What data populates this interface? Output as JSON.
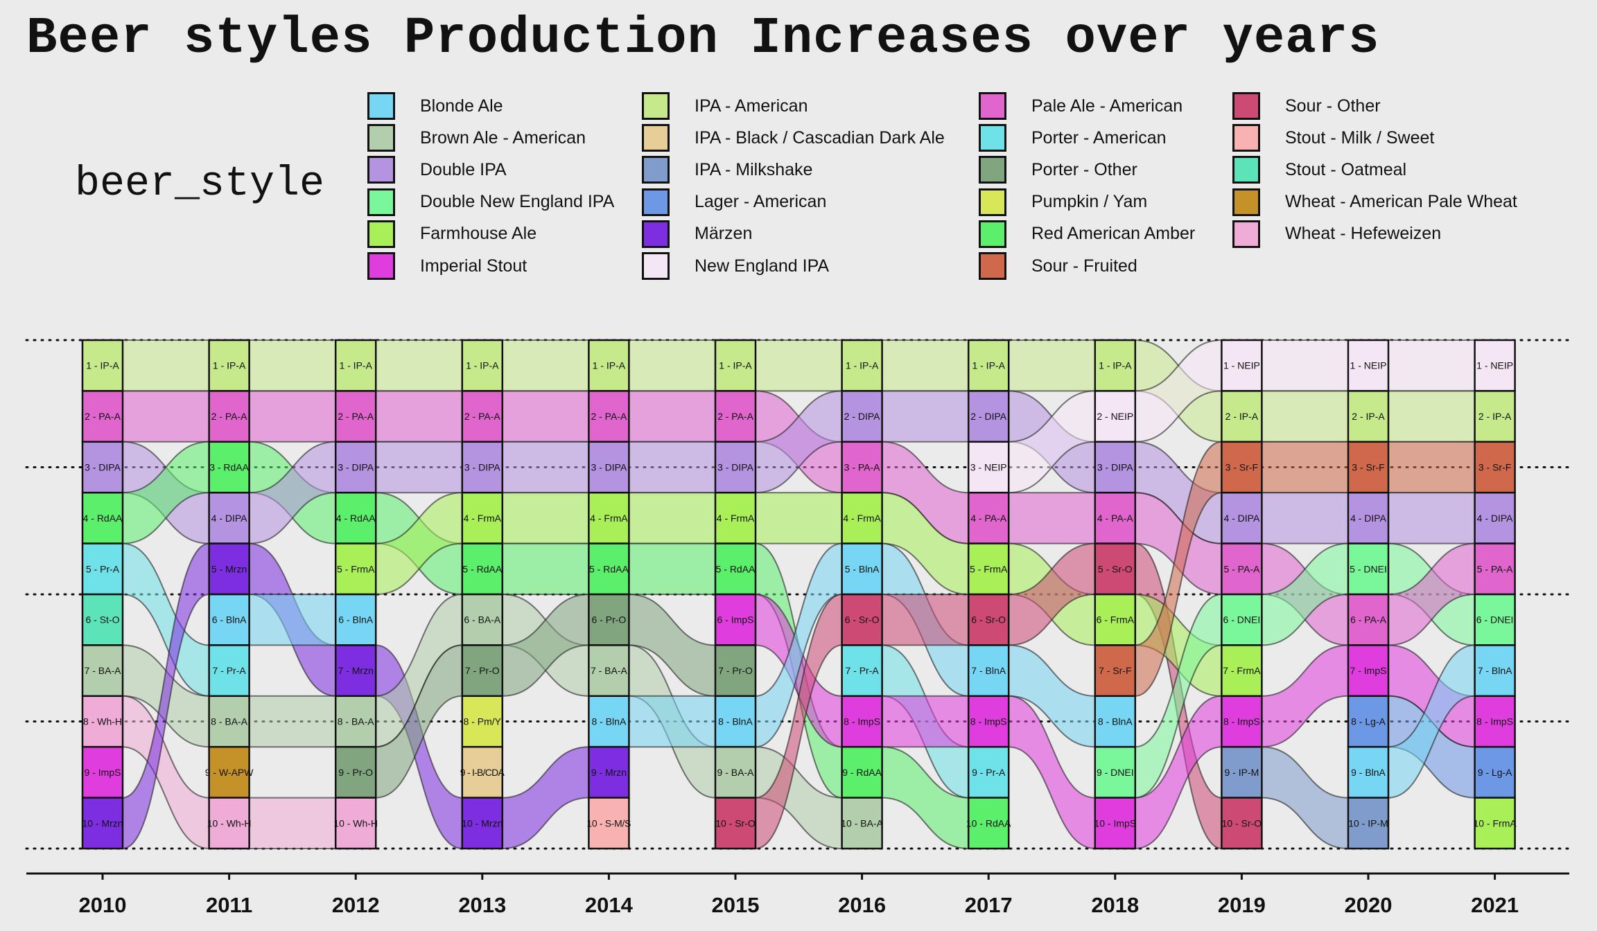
{
  "chart_data": {
    "type": "alluvial",
    "title": "Beer styles Production Increases over years",
    "legend_title": "beer_style",
    "legend_placement": "top",
    "years": [
      "2010",
      "2011",
      "2012",
      "2013",
      "2014",
      "2015",
      "2016",
      "2017",
      "2018",
      "2019",
      "2020",
      "2021"
    ],
    "styles": [
      {
        "name": "Blonde Ale",
        "abbr": "BlnA",
        "color": "#77d6f4"
      },
      {
        "name": "Brown Ale - American",
        "abbr": "BA-A",
        "color": "#b2ceac"
      },
      {
        "name": "Double IPA",
        "abbr": "DIPA",
        "color": "#b493e1"
      },
      {
        "name": "Double New England IPA",
        "abbr": "DNEI",
        "color": "#7bf79b"
      },
      {
        "name": "Farmhouse Ale",
        "abbr": "FrmA",
        "color": "#a8ef58"
      },
      {
        "name": "Imperial Stout",
        "abbr": "ImpS",
        "color": "#e03ddf"
      },
      {
        "name": "IPA - American",
        "abbr": "IP-A",
        "color": "#c6e98c"
      },
      {
        "name": "IPA - Black / Cascadian Dark Ale",
        "abbr": "I-B/CDA",
        "color": "#e7cd98"
      },
      {
        "name": "IPA - Milkshake",
        "abbr": "IP-M",
        "color": "#7f9ccc"
      },
      {
        "name": "Lager - American",
        "abbr": "Lg-A",
        "color": "#6c98e6"
      },
      {
        "name": "Märzen",
        "abbr": "Mrzn",
        "color": "#7c2ee0"
      },
      {
        "name": "New England IPA",
        "abbr": "NEIP",
        "color": "#f5e6f5"
      },
      {
        "name": "Pale Ale - American",
        "abbr": "PA-A",
        "color": "#e065cd"
      },
      {
        "name": "Porter - American",
        "abbr": "Pr-A",
        "color": "#6ee2e8"
      },
      {
        "name": "Porter - Other",
        "abbr": "Pr-O",
        "color": "#81a57f"
      },
      {
        "name": "Pumpkin / Yam",
        "abbr": "Pm/Y",
        "color": "#d8e757"
      },
      {
        "name": "Red American Amber",
        "abbr": "RdAA",
        "color": "#5bef6c"
      },
      {
        "name": "Sour - Fruited",
        "abbr": "Sr-F",
        "color": "#d0694b"
      },
      {
        "name": "Sour - Other",
        "abbr": "Sr-O",
        "color": "#cc4a74"
      },
      {
        "name": "Stout - Milk / Sweet",
        "abbr": "S-M/S",
        "color": "#f9b2b2"
      },
      {
        "name": "Stout - Oatmeal",
        "abbr": "St-O",
        "color": "#5de3b8"
      },
      {
        "name": "Wheat  - American Pale Wheat",
        "abbr": "W-APW",
        "color": "#c5922a"
      },
      {
        "name": "Wheat  - Hefeweizen",
        "abbr": "Wh-H",
        "color": "#eeacd6"
      }
    ],
    "rankings": {
      "2010": [
        "IP-A",
        "PA-A",
        "DIPA",
        "RdAA",
        "Pr-A",
        "St-O",
        "BA-A",
        "Wh-H",
        "ImpS",
        "Mrzn"
      ],
      "2011": [
        "IP-A",
        "PA-A",
        "RdAA",
        "DIPA",
        "Mrzn",
        "BlnA",
        "Pr-A",
        "BA-A",
        "W-APW",
        "Wh-H"
      ],
      "2012": [
        "IP-A",
        "PA-A",
        "DIPA",
        "RdAA",
        "FrmA",
        "BlnA",
        "Mrzn",
        "BA-A",
        "Pr-O",
        "Wh-H"
      ],
      "2013": [
        "IP-A",
        "PA-A",
        "DIPA",
        "FrmA",
        "RdAA",
        "BA-A",
        "Pr-O",
        "Pm/Y",
        "I-B/CDA",
        "Mrzn"
      ],
      "2014": [
        "IP-A",
        "PA-A",
        "DIPA",
        "FrmA",
        "RdAA",
        "Pr-O",
        "BA-A",
        "BlnA",
        "Mrzn",
        "S-M/S"
      ],
      "2015": [
        "IP-A",
        "PA-A",
        "DIPA",
        "FrmA",
        "RdAA",
        "ImpS",
        "Pr-O",
        "BlnA",
        "BA-A",
        "Sr-O"
      ],
      "2016": [
        "IP-A",
        "DIPA",
        "PA-A",
        "FrmA",
        "BlnA",
        "Sr-O",
        "Pr-A",
        "ImpS",
        "RdAA",
        "BA-A"
      ],
      "2017": [
        "IP-A",
        "DIPA",
        "NEIP",
        "PA-A",
        "FrmA",
        "Sr-O",
        "BlnA",
        "ImpS",
        "Pr-A",
        "RdAA"
      ],
      "2018": [
        "IP-A",
        "NEIP",
        "DIPA",
        "PA-A",
        "Sr-O",
        "FrmA",
        "Sr-F",
        "BlnA",
        "DNEI",
        "ImpS"
      ],
      "2019": [
        "NEIP",
        "IP-A",
        "Sr-F",
        "DIPA",
        "PA-A",
        "DNEI",
        "FrmA",
        "ImpS",
        "IP-M",
        "Sr-O"
      ],
      "2020": [
        "NEIP",
        "IP-A",
        "Sr-F",
        "DIPA",
        "DNEI",
        "PA-A",
        "ImpS",
        "Lg-A",
        "BlnA",
        "IP-M"
      ],
      "2021": [
        "NEIP",
        "IP-A",
        "Sr-F",
        "DIPA",
        "PA-A",
        "DNEI",
        "BlnA",
        "ImpS",
        "Lg-A",
        "FrmA"
      ]
    }
  }
}
